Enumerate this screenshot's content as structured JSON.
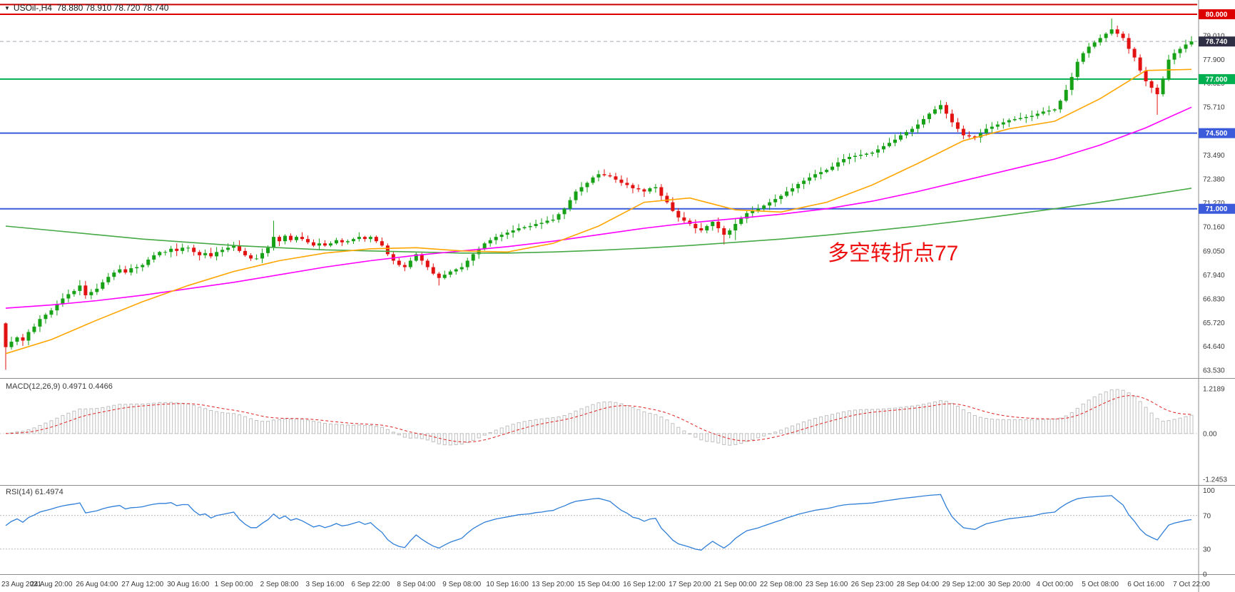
{
  "header": {
    "title": "USOil-,H4  78.880 78.910 78.720 78.740",
    "dropdown_icon": "▼"
  },
  "colors": {
    "up": "#17a117",
    "down": "#e31212",
    "ma_fast": "#ffa500",
    "ma_mid": "#ff00ff",
    "ma_slow": "#46a946",
    "hline_red": "#dd0000",
    "hline_green": "#00b050",
    "hline_blue": "#3b5bdb",
    "macd_hist_stroke": "#bfbfbf",
    "macd_signal": "#e02020",
    "rsi_line": "#2f7ed8",
    "axis_text": "#3a3a3a",
    "separator": "#8c8c8c",
    "current_badge_bg": "#2e2e45",
    "current_line": "#a8a8b4",
    "annotation": "#ee1111"
  },
  "main": {
    "annotation": "多空转折点77",
    "hlines": [
      {
        "price": 80.45,
        "color": "#cc0000",
        "label": null
      },
      {
        "price": 80.0,
        "color": "#dd0000",
        "label": "80.000"
      },
      {
        "price": 77.0,
        "color": "#00b050",
        "label": "77.000"
      },
      {
        "price": 74.5,
        "color": "#3b5bdb",
        "label": "74.500"
      },
      {
        "price": 71.0,
        "color": "#3b5bdb",
        "label": "71.000"
      }
    ],
    "current_price": {
      "value": 78.74,
      "label": "78.740"
    }
  },
  "chart_data": {
    "type": "candlestick+indicators",
    "symbol": "USOil-",
    "timeframe": "H4",
    "quote": {
      "open": 78.88,
      "high": 78.91,
      "low": 78.72,
      "close": 78.74
    },
    "ylim_main": [
      63.17,
      80.66
    ],
    "first_open": 65.7,
    "closes": [
      64.6,
      64.85,
      65.05,
      64.9,
      65.3,
      65.55,
      65.9,
      66.1,
      66.3,
      66.6,
      66.85,
      67.05,
      67.2,
      67.45,
      67.0,
      67.15,
      67.3,
      67.6,
      67.85,
      68.05,
      68.2,
      68.05,
      68.25,
      68.3,
      68.4,
      68.65,
      68.85,
      69.0,
      69.0,
      69.15,
      69.05,
      69.2,
      69.2,
      69.0,
      68.85,
      68.95,
      68.8,
      69.0,
      69.1,
      69.2,
      69.3,
      69.05,
      68.85,
      68.7,
      68.7,
      68.95,
      69.2,
      69.7,
      69.5,
      69.75,
      69.55,
      69.7,
      69.6,
      69.45,
      69.3,
      69.4,
      69.3,
      69.4,
      69.55,
      69.45,
      69.5,
      69.6,
      69.7,
      69.6,
      69.7,
      69.5,
      69.3,
      68.9,
      68.6,
      68.4,
      68.3,
      68.6,
      68.9,
      68.6,
      68.3,
      68.0,
      67.8,
      67.95,
      68.1,
      68.2,
      68.3,
      68.6,
      68.9,
      69.15,
      69.4,
      69.55,
      69.7,
      69.8,
      69.9,
      70.0,
      70.1,
      70.15,
      70.2,
      70.3,
      70.35,
      70.45,
      70.5,
      70.75,
      71.0,
      71.4,
      71.8,
      72.0,
      72.2,
      72.45,
      72.6,
      72.55,
      72.5,
      72.35,
      72.2,
      72.1,
      71.95,
      71.9,
      71.8,
      71.95,
      72.0,
      71.6,
      71.3,
      70.9,
      70.6,
      70.45,
      70.3,
      70.1,
      70.0,
      70.2,
      70.4,
      70.1,
      69.8,
      70.0,
      70.3,
      70.55,
      70.8,
      70.9,
      71.0,
      71.15,
      71.3,
      71.45,
      71.6,
      71.8,
      71.95,
      72.15,
      72.3,
      72.45,
      72.6,
      72.7,
      72.8,
      72.95,
      73.15,
      73.3,
      73.4,
      73.45,
      73.5,
      73.55,
      73.6,
      73.75,
      73.9,
      74.05,
      74.2,
      74.4,
      74.55,
      74.7,
      74.9,
      75.15,
      75.4,
      75.6,
      75.8,
      75.4,
      75.0,
      74.7,
      74.4,
      74.35,
      74.3,
      74.5,
      74.7,
      74.8,
      74.9,
      75.0,
      75.1,
      75.15,
      75.2,
      75.25,
      75.3,
      75.4,
      75.5,
      75.55,
      75.6,
      76.0,
      76.5,
      77.1,
      77.8,
      78.2,
      78.5,
      78.7,
      78.9,
      79.1,
      79.3,
      79.1,
      78.9,
      78.4,
      78.0,
      77.4,
      76.9,
      76.6,
      76.3,
      77.0,
      77.9,
      78.2,
      78.4,
      78.6,
      78.74
    ],
    "wick_overrides": {
      "0": {
        "low": 63.55
      },
      "47": {
        "high": 70.45
      },
      "76": {
        "low": 67.45
      },
      "104": {
        "high": 72.78
      },
      "126": {
        "low": 69.35
      },
      "128": {
        "low": 69.55
      },
      "164": {
        "high": 76.02
      },
      "194": {
        "high": 79.8
      },
      "202": {
        "low": 75.35
      }
    },
    "ma_sample_step": 8,
    "ma_fast_orange": [
      64.3,
      64.95,
      65.85,
      66.7,
      67.45,
      68.1,
      68.6,
      68.95,
      69.15,
      69.2,
      69.05,
      69.0,
      69.4,
      70.2,
      71.3,
      71.5,
      70.95,
      70.85,
      71.3,
      72.1,
      73.1,
      74.15,
      74.7,
      75.05,
      76.1,
      77.4,
      77.45
    ],
    "ma_mid_magenta": [
      66.4,
      66.55,
      66.75,
      67.0,
      67.3,
      67.6,
      67.95,
      68.3,
      68.6,
      68.85,
      69.05,
      69.25,
      69.5,
      69.8,
      70.1,
      70.35,
      70.55,
      70.75,
      71.0,
      71.35,
      71.8,
      72.3,
      72.8,
      73.3,
      73.95,
      74.75,
      75.7
    ],
    "ma_slow_green": [
      70.2,
      70.0,
      69.8,
      69.6,
      69.45,
      69.3,
      69.2,
      69.1,
      69.05,
      69.0,
      68.95,
      68.95,
      69.0,
      69.08,
      69.18,
      69.3,
      69.45,
      69.6,
      69.78,
      69.98,
      70.2,
      70.45,
      70.72,
      71.0,
      71.3,
      71.62,
      71.95
    ],
    "price_axis_ticks": [
      "79.010",
      "77.900",
      "76.820",
      "75.710",
      "73.490",
      "72.380",
      "71.270",
      "70.160",
      "69.050",
      "67.940",
      "66.830",
      "65.720",
      "64.640",
      "63.530"
    ],
    "time_labels": [
      "23 Aug 2021",
      "24 Aug 20:00",
      "26 Aug 04:00",
      "27 Aug 12:00",
      "30 Aug 16:00",
      "1 Sep 00:00",
      "2 Sep 08:00",
      "3 Sep 16:00",
      "6 Sep 22:00",
      "8 Sep 04:00",
      "9 Sep 08:00",
      "10 Sep 16:00",
      "13 Sep 20:00",
      "15 Sep 04:00",
      "16 Sep 12:00",
      "17 Sep 20:00",
      "21 Sep 00:00",
      "22 Sep 08:00",
      "23 Sep 16:00",
      "26 Sep 23:00",
      "28 Sep 04:00",
      "29 Sep 12:00",
      "30 Sep 20:00",
      "4 Oct 00:00",
      "5 Oct 08:00",
      "6 Oct 16:00",
      "7 Oct 22:00"
    ],
    "macd": {
      "label": "MACD(12,26,9) 0.4971 0.4466",
      "params": [
        12,
        26,
        9
      ],
      "value": 0.4971,
      "signal": 0.4466,
      "scale_labels": [
        "1.2189",
        "0.00",
        "-1.2453"
      ]
    },
    "rsi": {
      "label": "RSI(14) 61.4974",
      "period": 14,
      "value": 61.4974,
      "scale_labels": [
        "100",
        "70",
        "30",
        "0"
      ],
      "dashed_levels": [
        70,
        30
      ]
    }
  }
}
